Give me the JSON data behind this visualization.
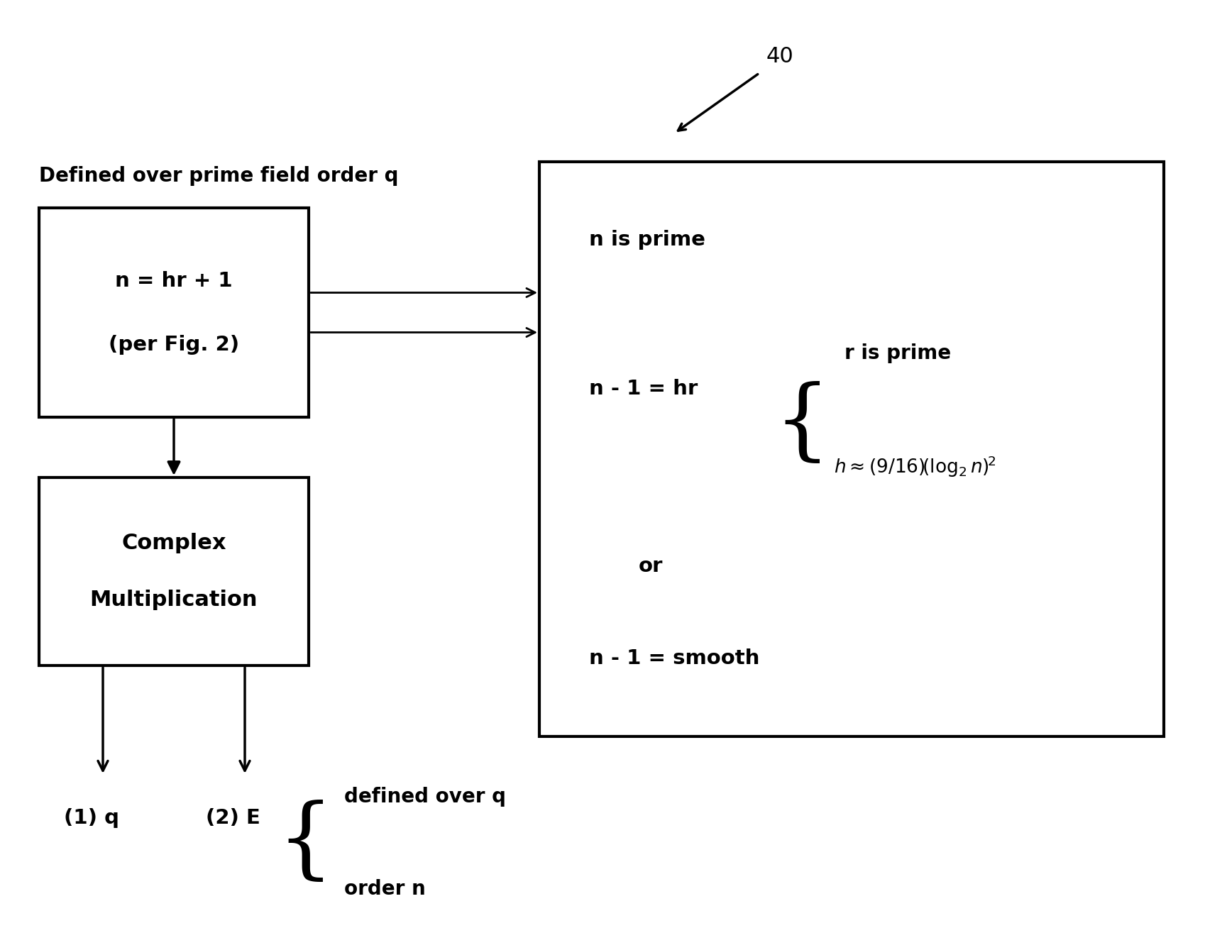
{
  "title": "40",
  "header_text": "Defined over prime field order q",
  "box1_lines": [
    "n = hr + 1",
    "(per Fig. 2)"
  ],
  "box2_lines": [
    "Complex",
    "Multiplication"
  ],
  "output1": "(1) q",
  "output2": "(2) E",
  "brace_labels": [
    "defined over q",
    "order n"
  ],
  "bg_color": "#ffffff",
  "box_color": "#ffffff",
  "box_edge_color": "#000000",
  "text_color": "#000000",
  "arrow_color": "#000000",
  "figw": 16.98,
  "figh": 13.08,
  "dpi": 100
}
